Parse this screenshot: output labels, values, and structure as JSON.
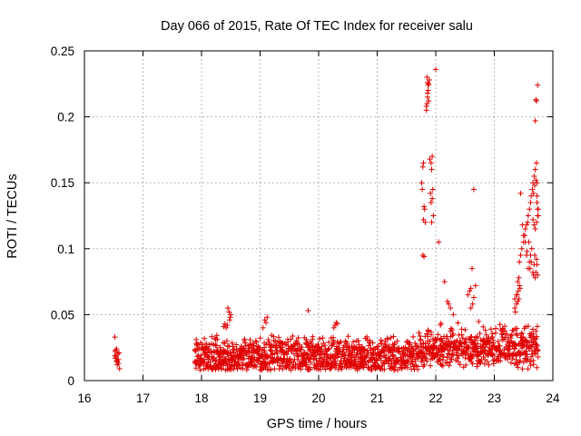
{
  "chart_data": {
    "type": "scatter",
    "title": "Day 066 of 2015, Rate Of TEC Index for receiver salu",
    "xlabel": "GPS time / hours",
    "ylabel": "ROTI / TECUs",
    "xlim": [
      16,
      24
    ],
    "ylim": [
      0,
      0.25
    ],
    "xticks": [
      16,
      17,
      18,
      19,
      20,
      21,
      22,
      23,
      24
    ],
    "xtick_labels": [
      "16",
      "17",
      "18",
      "19",
      "20",
      "21",
      "22",
      "23",
      "24"
    ],
    "yticks": [
      0,
      0.05,
      0.1,
      0.15,
      0.2,
      0.25
    ],
    "ytick_labels": [
      "0",
      "0.05",
      "0.1",
      "0.15",
      "0.2",
      "0.25"
    ],
    "grid": true,
    "marker": "+",
    "marker_color": "#e00000",
    "series": [
      {
        "name": "ROTI",
        "x": [
          16.52,
          16.53,
          16.54,
          16.55,
          16.56,
          16.57,
          16.58,
          16.59,
          16.52,
          16.55,
          16.58,
          16.53,
          16.56,
          16.6,
          16.53,
          16.56,
          18.45,
          18.47,
          18.49,
          18.48,
          18.5,
          18.38,
          18.4,
          18.42,
          18.44,
          19.08,
          19.1,
          19.12,
          19.05,
          19.82,
          20.3,
          20.28,
          20.26,
          20.32,
          21.78,
          21.8,
          21.82,
          21.79,
          21.81,
          21.76,
          21.78,
          21.8,
          21.77,
          21.79,
          21.84,
          21.85,
          21.86,
          21.87,
          21.88,
          21.89,
          21.86,
          21.88,
          21.85,
          21.87,
          21.84,
          21.86,
          21.9,
          21.92,
          21.93,
          21.95,
          21.91,
          21.94,
          21.96,
          21.93,
          21.92,
          21.94,
          22.0,
          22.05,
          22.15,
          22.2,
          22.22,
          22.25,
          22.3,
          22.55,
          22.58,
          22.6,
          22.62,
          22.65,
          22.68,
          22.65,
          22.63,
          22.6,
          23.35,
          23.38,
          23.4,
          23.42,
          23.43,
          23.45,
          23.47,
          23.5,
          23.52,
          23.53,
          23.55,
          23.57,
          23.58,
          23.6,
          23.62,
          23.63,
          23.65,
          23.66,
          23.68,
          23.7,
          23.72,
          23.73,
          23.74,
          23.75,
          23.58,
          23.6,
          23.62,
          23.64,
          23.66,
          23.68,
          23.7,
          23.72,
          23.74,
          23.56,
          23.59,
          23.61,
          23.63,
          23.67,
          23.69,
          23.71,
          23.73,
          23.66,
          23.68,
          23.7,
          23.72,
          23.74,
          23.75,
          23.69,
          23.71,
          23.67,
          23.73,
          23.7,
          23.72,
          23.74,
          23.71,
          23.73,
          23.35,
          23.38,
          23.4,
          23.42,
          23.44,
          23.36,
          23.39,
          23.41,
          23.43,
          23.45,
          23.48,
          23.5,
          23.53,
          23.55
        ],
        "y": [
          0.033,
          0.022,
          0.018,
          0.015,
          0.012,
          0.02,
          0.016,
          0.021,
          0.019,
          0.024,
          0.013,
          0.017,
          0.015,
          0.009,
          0.023,
          0.014,
          0.055,
          0.052,
          0.048,
          0.046,
          0.05,
          0.041,
          0.043,
          0.04,
          0.042,
          0.046,
          0.044,
          0.048,
          0.04,
          0.053,
          0.044,
          0.042,
          0.04,
          0.043,
          0.095,
          0.094,
          0.12,
          0.122,
          0.13,
          0.15,
          0.162,
          0.132,
          0.145,
          0.165,
          0.205,
          0.21,
          0.215,
          0.22,
          0.225,
          0.228,
          0.218,
          0.212,
          0.23,
          0.224,
          0.208,
          0.226,
          0.168,
          0.165,
          0.16,
          0.145,
          0.142,
          0.138,
          0.125,
          0.12,
          0.135,
          0.17,
          0.236,
          0.105,
          0.075,
          0.06,
          0.058,
          0.055,
          0.05,
          0.065,
          0.068,
          0.07,
          0.085,
          0.145,
          0.072,
          0.063,
          0.058,
          0.055,
          0.062,
          0.065,
          0.075,
          0.078,
          0.09,
          0.095,
          0.1,
          0.105,
          0.11,
          0.115,
          0.118,
          0.12,
          0.125,
          0.13,
          0.135,
          0.14,
          0.145,
          0.15,
          0.155,
          0.16,
          0.165,
          0.14,
          0.13,
          0.125,
          0.085,
          0.09,
          0.095,
          0.1,
          0.082,
          0.088,
          0.078,
          0.092,
          0.08,
          0.098,
          0.105,
          0.085,
          0.09,
          0.08,
          0.095,
          0.082,
          0.088,
          0.122,
          0.118,
          0.115,
          0.12,
          0.125,
          0.13,
          0.148,
          0.152,
          0.142,
          0.135,
          0.197,
          0.212,
          0.224,
          0.213,
          0.15,
          0.055,
          0.058,
          0.06,
          0.062,
          0.07,
          0.052,
          0.065,
          0.068,
          0.072,
          0.142,
          0.118,
          0.11,
          0.105,
          0.095
        ],
        "bulk": {
          "description": "dense band of points",
          "x_range": [
            17.88,
            23.75
          ],
          "y_min": 0.008,
          "y_max": 0.035
        }
      }
    ]
  }
}
